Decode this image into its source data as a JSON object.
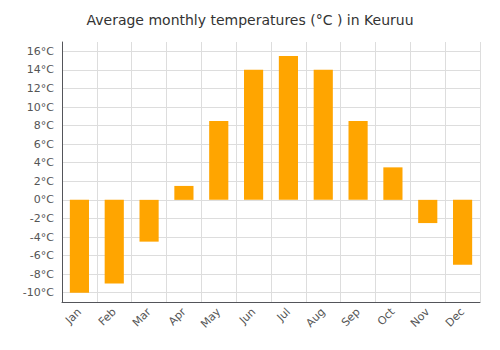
{
  "chart_data": {
    "type": "bar",
    "title": "Average monthly temperatures (°C ) in Keuruu",
    "categories": [
      "Jan",
      "Feb",
      "Mar",
      "Apr",
      "May",
      "Jun",
      "Jul",
      "Aug",
      "Sep",
      "Oct",
      "Nov",
      "Dec"
    ],
    "values": [
      -10,
      -9,
      -4.5,
      1.5,
      8.5,
      14,
      15.5,
      14,
      8.5,
      3.5,
      -2.5,
      -7
    ],
    "color": "#FFA500",
    "ylim": [
      -11,
      17
    ],
    "yticks": [
      {
        "value": -10,
        "label": "-10°C"
      },
      {
        "value": -8,
        "label": "-8°C"
      },
      {
        "value": -6,
        "label": "-6°C"
      },
      {
        "value": -4,
        "label": "-4°C"
      },
      {
        "value": -2,
        "label": "-2°C"
      },
      {
        "value": 0,
        "label": "0°C"
      },
      {
        "value": 2,
        "label": "2°C"
      },
      {
        "value": 4,
        "label": "4°C"
      },
      {
        "value": 6,
        "label": "6°C"
      },
      {
        "value": 8,
        "label": "8°C"
      },
      {
        "value": 10,
        "label": "10°C"
      },
      {
        "value": 12,
        "label": "12°C"
      },
      {
        "value": 14,
        "label": "14°C"
      },
      {
        "value": 16,
        "label": "16°C"
      }
    ],
    "grid": true
  }
}
